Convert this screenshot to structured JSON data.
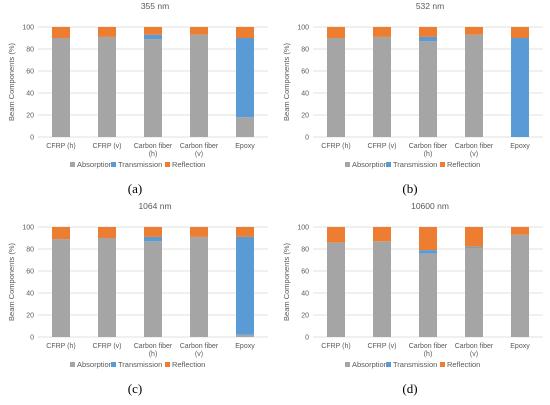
{
  "colors": {
    "Absorption": "#a5a5a5",
    "Transmission": "#5b9bd5",
    "Reflection": "#ed7d31"
  },
  "chart_data": [
    {
      "type": "bar",
      "stacked": true,
      "title": "355 nm",
      "caption": "(a)",
      "ylabel": "Beam Components (%)",
      "ylim": [
        0,
        100
      ],
      "yticks": [
        "0",
        "20",
        "40",
        "60",
        "80",
        "100"
      ],
      "categories": [
        [
          "CFRP (h)"
        ],
        [
          "CFRP (v)"
        ],
        [
          "Carbon fiber",
          "(h)"
        ],
        [
          "Carbon fiber",
          "(v)"
        ],
        [
          "Epoxy"
        ]
      ],
      "series": [
        {
          "name": "Absorption",
          "values": [
            90,
            91,
            89,
            93,
            18
          ]
        },
        {
          "name": "Transmission",
          "values": [
            0,
            0,
            4,
            0,
            72
          ]
        },
        {
          "name": "Reflection",
          "values": [
            10,
            9,
            7,
            7,
            10
          ]
        }
      ],
      "legend": [
        "Absorption",
        "Transmission",
        "Reflection"
      ]
    },
    {
      "type": "bar",
      "stacked": true,
      "title": "532 nm",
      "caption": "(b)",
      "ylabel": "Beam Components (%)",
      "ylim": [
        0,
        100
      ],
      "yticks": [
        "0",
        "20",
        "40",
        "60",
        "80",
        "100"
      ],
      "categories": [
        [
          "CFRP (h)"
        ],
        [
          "CFRP (v)"
        ],
        [
          "Carbon fiber",
          "(h)"
        ],
        [
          "Carbon fiber",
          "(v)"
        ],
        [
          "Epoxy"
        ]
      ],
      "series": [
        {
          "name": "Absorption",
          "values": [
            90,
            91,
            87,
            93,
            0
          ]
        },
        {
          "name": "Transmission",
          "values": [
            0,
            0,
            4,
            0,
            90
          ]
        },
        {
          "name": "Reflection",
          "values": [
            10,
            9,
            9,
            7,
            10
          ]
        }
      ],
      "legend": [
        "Absorption",
        "Transmission",
        "Reflection"
      ]
    },
    {
      "type": "bar",
      "stacked": true,
      "title": "1064 nm",
      "caption": "(c)",
      "ylabel": "Beam Components (%)",
      "ylim": [
        0,
        100
      ],
      "yticks": [
        "0",
        "20",
        "40",
        "60",
        "80",
        "100"
      ],
      "categories": [
        [
          "CFRP (h)"
        ],
        [
          "CFRP (v)"
        ],
        [
          "Carbon fiber",
          "(h)"
        ],
        [
          "Carbon fiber",
          "(v)"
        ],
        [
          "Epoxy"
        ]
      ],
      "series": [
        {
          "name": "Absorption",
          "values": [
            89,
            90,
            87,
            91,
            2
          ]
        },
        {
          "name": "Transmission",
          "values": [
            0,
            0,
            4,
            0,
            89
          ]
        },
        {
          "name": "Reflection",
          "values": [
            11,
            10,
            9,
            9,
            9
          ]
        }
      ],
      "legend": [
        "Absorption",
        "Transmission",
        "Reflection"
      ]
    },
    {
      "type": "bar",
      "stacked": true,
      "title": "10600 nm",
      "caption": "(d)",
      "ylabel": "Beam Components (%)",
      "ylim": [
        0,
        100
      ],
      "yticks": [
        "0",
        "20",
        "40",
        "60",
        "80",
        "100"
      ],
      "categories": [
        [
          "CFRP (h)"
        ],
        [
          "CFRP (v)"
        ],
        [
          "Carbon fiber",
          "(h)"
        ],
        [
          "Carbon fiber",
          "(v)"
        ],
        [
          "Epoxy"
        ]
      ],
      "series": [
        {
          "name": "Absorption",
          "values": [
            86,
            87,
            76,
            81,
            93
          ]
        },
        {
          "name": "Transmission",
          "values": [
            0,
            0,
            3,
            1,
            0
          ]
        },
        {
          "name": "Reflection",
          "values": [
            14,
            13,
            21,
            18,
            7
          ]
        }
      ],
      "legend": [
        "Absorption",
        "Transmission",
        "Reflection"
      ]
    }
  ]
}
